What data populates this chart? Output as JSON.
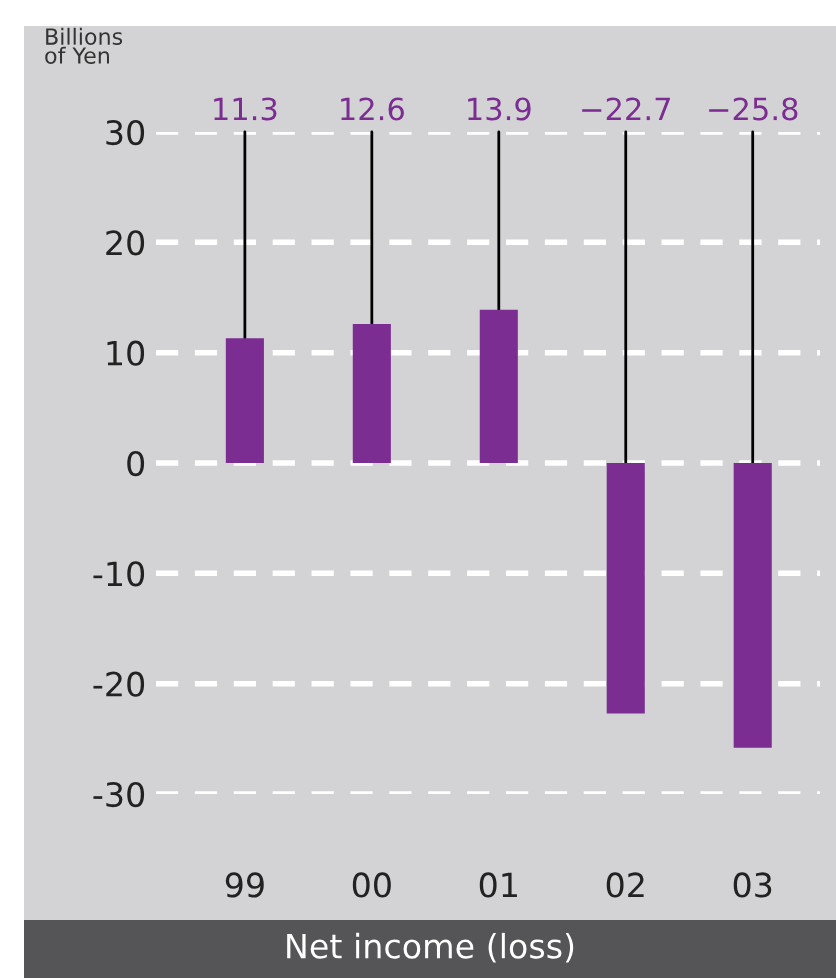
{
  "chart_data": {
    "type": "bar",
    "title": "Net income (loss)",
    "ylabel": "Billions\nof Yen",
    "categories": [
      "99",
      "00",
      "01",
      "02",
      "03"
    ],
    "values": [
      11.3,
      12.6,
      13.9,
      -22.7,
      -25.8
    ],
    "value_labels": [
      "11.3",
      "12.6",
      "13.9",
      "−22.7",
      "−25.8"
    ],
    "color": "#7b2d91",
    "ylim": [
      -30,
      30
    ],
    "yticks": [
      30,
      20,
      10,
      0,
      -10,
      -20,
      -30
    ],
    "grid": "y"
  }
}
